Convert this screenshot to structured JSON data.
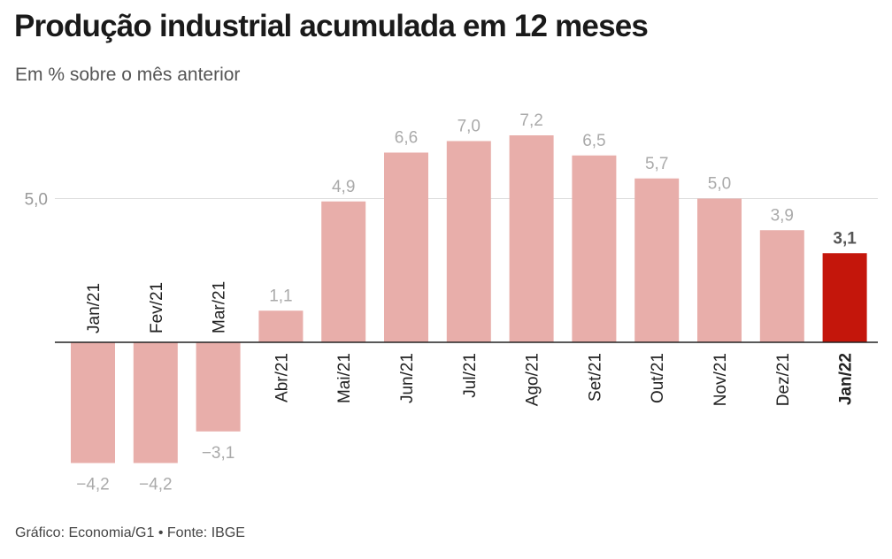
{
  "header": {
    "title": "Produção industrial acumulada em 12 meses",
    "subtitle": "Em % sobre o mês anterior"
  },
  "footer": {
    "source": "Gráfico: Economia/G1 • Fonte: IBGE"
  },
  "chart_data": {
    "type": "bar",
    "categories": [
      "Jan/21",
      "Fev/21",
      "Mar/21",
      "Abr/21",
      "Mai/21",
      "Jun/21",
      "Jul/21",
      "Ago/21",
      "Set/21",
      "Out/21",
      "Nov/21",
      "Dez/21",
      "Jan/22"
    ],
    "values": [
      -4.2,
      -4.2,
      -3.1,
      1.1,
      4.9,
      6.6,
      7.0,
      7.2,
      6.5,
      5.7,
      5.0,
      3.9,
      3.1
    ],
    "data_labels": [
      "−4,2",
      "−4,2",
      "−3,1",
      "1,1",
      "4,9",
      "6,6",
      "7,0",
      "7,2",
      "6,5",
      "5,7",
      "5,0",
      "3,9",
      "3,1"
    ],
    "y_ticks": [
      {
        "value": 5,
        "label": "5,0"
      }
    ],
    "highlight_index": 12,
    "colors": {
      "bar": "#e8aeaa",
      "highlight": "#c4160b",
      "label": "#aaaaaa",
      "highlight_label": "#555555",
      "grid": "#dddddd",
      "axis": "#222222"
    },
    "grid": true,
    "legend": "none"
  }
}
